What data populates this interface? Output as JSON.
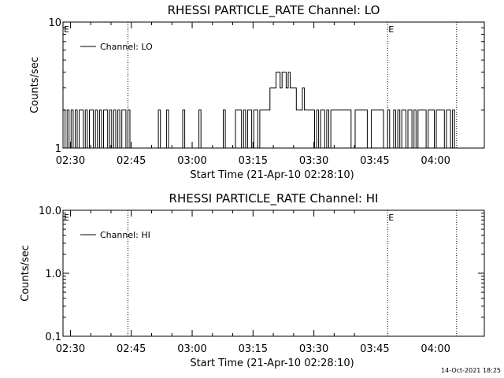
{
  "chart_data": [
    {
      "type": "line",
      "title": "RHESSI PARTICLE_RATE Channel: LO",
      "xlabel": "Start Time (21-Apr-10 02:28:10)",
      "ylabel": "Counts/sec",
      "yscale": "log",
      "ylim": [
        1,
        10
      ],
      "y_tick_labels": [
        "1",
        "10"
      ],
      "xlim": [
        "02:28:10",
        "04:12:00"
      ],
      "x_tick_labels": [
        "02:30",
        "02:45",
        "03:00",
        "03:15",
        "03:30",
        "03:45",
        "04:00"
      ],
      "legend": "top-left",
      "grid": false,
      "vertical_marker_times": [
        "02:44:10",
        "03:48:10",
        "04:05:10"
      ],
      "marker_labels": [
        {
          "text": "E",
          "time": "02:28:10"
        },
        {
          "text": "E",
          "time": "03:48:10"
        }
      ],
      "series": [
        {
          "name": "Channel: LO",
          "x": [
            "02:28:10",
            "02:28:40",
            "02:29:10",
            "02:29:40",
            "02:30:10",
            "02:30:40",
            "02:31:10",
            "02:31:40",
            "02:32:10",
            "02:32:40",
            "02:33:10",
            "02:33:40",
            "02:34:10",
            "02:34:40",
            "02:35:10",
            "02:35:40",
            "02:36:10",
            "02:36:40",
            "02:37:10",
            "02:37:40",
            "02:38:10",
            "02:38:40",
            "02:39:10",
            "02:39:40",
            "02:40:10",
            "02:40:40",
            "02:41:10",
            "02:41:40",
            "02:42:10",
            "02:42:40",
            "02:43:10",
            "02:43:40",
            "02:44:10",
            "02:44:40",
            "02:45:10",
            "02:51:10",
            "02:51:40",
            "02:52:10",
            "02:53:10",
            "02:53:40",
            "02:54:10",
            "02:57:10",
            "02:57:40",
            "02:58:10",
            "03:01:10",
            "03:01:40",
            "03:02:10",
            "03:07:10",
            "03:07:40",
            "03:08:10",
            "03:10:10",
            "03:10:40",
            "03:11:10",
            "03:12:10",
            "03:12:40",
            "03:13:10",
            "03:13:40",
            "03:14:10",
            "03:14:40",
            "03:15:10",
            "03:15:40",
            "03:16:10",
            "03:16:40",
            "03:17:10",
            "03:17:40",
            "03:18:10",
            "03:18:40",
            "03:19:10",
            "03:19:40",
            "03:20:10",
            "03:20:40",
            "03:21:10",
            "03:21:40",
            "03:22:10",
            "03:22:40",
            "03:23:10",
            "03:23:40",
            "03:24:10",
            "03:24:40",
            "03:25:10",
            "03:25:40",
            "03:26:10",
            "03:26:40",
            "03:27:10",
            "03:27:40",
            "03:28:10",
            "03:28:40",
            "03:29:10",
            "03:29:40",
            "03:30:10",
            "03:30:40",
            "03:31:10",
            "03:31:40",
            "03:32:10",
            "03:32:40",
            "03:33:10",
            "03:33:40",
            "03:34:10",
            "03:39:10",
            "03:39:40",
            "03:40:10",
            "03:43:10",
            "03:43:40",
            "03:44:10",
            "03:47:10",
            "03:47:40",
            "03:48:10",
            "03:48:40",
            "03:49:10",
            "03:49:40",
            "03:50:10",
            "03:50:40",
            "03:51:10",
            "03:51:40",
            "03:52:10",
            "03:52:40",
            "03:53:10",
            "03:53:40",
            "03:54:10",
            "03:54:40",
            "03:55:10",
            "03:55:40",
            "03:56:10",
            "03:56:40",
            "03:57:10",
            "03:57:40",
            "03:58:10",
            "03:58:40",
            "03:59:10",
            "03:59:40",
            "04:00:10",
            "04:00:40",
            "04:01:10",
            "04:01:40",
            "04:02:10",
            "04:02:40",
            "04:03:10",
            "04:03:40",
            "04:04:10",
            "04:04:40",
            "04:05:10"
          ],
          "y": [
            2,
            1,
            2,
            1,
            2,
            1,
            2,
            1,
            2,
            2,
            1,
            2,
            1,
            2,
            2,
            1,
            2,
            1,
            2,
            1,
            2,
            2,
            1,
            2,
            1,
            2,
            1,
            2,
            1,
            2,
            2,
            1,
            2,
            1,
            1,
            1,
            2,
            1,
            1,
            2,
            1,
            1,
            2,
            1,
            1,
            2,
            1,
            1,
            2,
            1,
            1,
            2,
            2,
            1,
            2,
            1,
            2,
            2,
            1,
            2,
            2,
            1,
            2,
            2,
            2,
            2,
            2,
            3,
            3,
            3,
            4,
            4,
            3,
            4,
            4,
            3,
            4,
            3,
            3,
            3,
            2,
            2,
            2,
            3,
            2,
            2,
            2,
            2,
            2,
            1,
            2,
            1,
            2,
            2,
            1,
            2,
            1,
            2,
            1,
            1,
            2,
            1,
            1,
            2,
            1,
            1,
            2,
            1,
            1,
            2,
            1,
            2,
            1,
            2,
            2,
            1,
            2,
            2,
            1,
            2,
            1,
            2,
            2,
            2,
            2,
            1,
            2,
            2,
            2,
            1,
            2,
            2,
            2,
            2,
            1,
            2,
            2,
            1,
            2,
            1,
            1
          ]
        }
      ]
    },
    {
      "type": "line",
      "title": "RHESSI PARTICLE_RATE Channel: HI",
      "xlabel": "Start Time (21-Apr-10 02:28:10)",
      "ylabel": "Counts/sec",
      "yscale": "log",
      "ylim": [
        0.1,
        10
      ],
      "y_tick_labels": [
        "0.1",
        "1.0",
        "10.0"
      ],
      "xlim": [
        "02:28:10",
        "04:12:00"
      ],
      "x_tick_labels": [
        "02:30",
        "02:45",
        "03:00",
        "03:15",
        "03:30",
        "03:45",
        "04:00"
      ],
      "legend": "top-left",
      "grid": false,
      "vertical_marker_times": [
        "02:44:10",
        "03:48:10",
        "04:05:10"
      ],
      "marker_labels": [
        {
          "text": "E",
          "time": "02:28:10"
        },
        {
          "text": "E",
          "time": "03:48:10"
        }
      ],
      "series": [
        {
          "name": "Channel: HI",
          "x": [],
          "y": []
        }
      ]
    }
  ],
  "footer": {
    "timestamp": "14-Oct-2021 18:25"
  }
}
